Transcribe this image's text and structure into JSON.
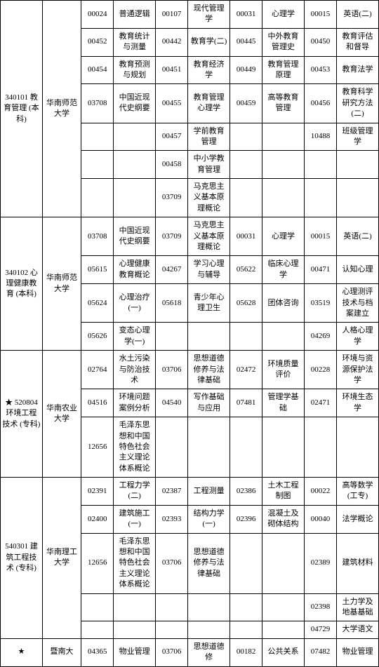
{
  "rows": [
    [
      {
        "v": "340101 教育管理 (本科)",
        "rs": 7
      },
      {
        "v": "华南师范大学",
        "rs": 7
      },
      {
        "v": "00024"
      },
      {
        "v": "普通逻辑"
      },
      {
        "v": "00107"
      },
      {
        "v": "现代管理学"
      },
      {
        "v": "00031"
      },
      {
        "v": "心理学"
      },
      {
        "v": "00015"
      },
      {
        "v": "英语(二)"
      }
    ],
    [
      {
        "v": "00452"
      },
      {
        "v": "教育统计与测量"
      },
      {
        "v": "00442"
      },
      {
        "v": "教育学(二)"
      },
      {
        "v": "00445"
      },
      {
        "v": "中外教育管理史"
      },
      {
        "v": "00450"
      },
      {
        "v": "教育评估和督导"
      }
    ],
    [
      {
        "v": "00454"
      },
      {
        "v": "教育预测与规划"
      },
      {
        "v": "00451"
      },
      {
        "v": "教育经济学"
      },
      {
        "v": "00449"
      },
      {
        "v": "教育管理原理"
      },
      {
        "v": "00453"
      },
      {
        "v": "教育法学"
      }
    ],
    [
      {
        "v": "03708"
      },
      {
        "v": "中国近现代史纲要"
      },
      {
        "v": "00455"
      },
      {
        "v": "教育管理心理学"
      },
      {
        "v": "00459"
      },
      {
        "v": "高等教育管理"
      },
      {
        "v": "00456"
      },
      {
        "v": "教育科学研究方法(二)"
      }
    ],
    [
      {
        "v": ""
      },
      {
        "v": ""
      },
      {
        "v": "00457"
      },
      {
        "v": "学前教育管理"
      },
      {
        "v": ""
      },
      {
        "v": ""
      },
      {
        "v": "10488"
      },
      {
        "v": "班级管理学"
      }
    ],
    [
      {
        "v": ""
      },
      {
        "v": ""
      },
      {
        "v": "00458"
      },
      {
        "v": "中小学教育管理"
      },
      {
        "v": ""
      },
      {
        "v": ""
      },
      {
        "v": ""
      },
      {
        "v": ""
      }
    ],
    [
      {
        "v": ""
      },
      {
        "v": ""
      },
      {
        "v": "03709"
      },
      {
        "v": "马克思主义基本原理概论"
      },
      {
        "v": ""
      },
      {
        "v": ""
      },
      {
        "v": ""
      },
      {
        "v": ""
      }
    ],
    [
      {
        "v": "340102 心理健康教育 (本科)",
        "rs": 4
      },
      {
        "v": "华南师范大学",
        "rs": 4
      },
      {
        "v": "03708"
      },
      {
        "v": "中国近现代史纲要"
      },
      {
        "v": "03709"
      },
      {
        "v": "马克思主义基本原理概论"
      },
      {
        "v": "00031"
      },
      {
        "v": "心理学"
      },
      {
        "v": "00015"
      },
      {
        "v": "英语(二)"
      }
    ],
    [
      {
        "v": "05615"
      },
      {
        "v": "心理健康教育概论"
      },
      {
        "v": "04267"
      },
      {
        "v": "学习心理与辅导"
      },
      {
        "v": "05622"
      },
      {
        "v": "临床心理学"
      },
      {
        "v": "00471"
      },
      {
        "v": "认知心理"
      }
    ],
    [
      {
        "v": "05624"
      },
      {
        "v": "心理治疗(一)"
      },
      {
        "v": "05618"
      },
      {
        "v": "青少年心理卫生"
      },
      {
        "v": "05628"
      },
      {
        "v": "团体咨询"
      },
      {
        "v": "03519"
      },
      {
        "v": "心理测评技术与档案建立"
      }
    ],
    [
      {
        "v": "05626"
      },
      {
        "v": "变态心理学(一)"
      },
      {
        "v": ""
      },
      {
        "v": ""
      },
      {
        "v": ""
      },
      {
        "v": ""
      },
      {
        "v": "04269"
      },
      {
        "v": "人格心理学"
      }
    ],
    [
      {
        "v": "★ 520804 环境工程技术 (专科)",
        "rs": 3
      },
      {
        "v": "华南农业大学",
        "rs": 3
      },
      {
        "v": "02764"
      },
      {
        "v": "水土污染与防治技术"
      },
      {
        "v": "03706"
      },
      {
        "v": "思想道德修养与法律基础"
      },
      {
        "v": "02472"
      },
      {
        "v": "环境质量评价"
      },
      {
        "v": "00228"
      },
      {
        "v": "环境与资源保护法学"
      }
    ],
    [
      {
        "v": "04516"
      },
      {
        "v": "环境问题案例分析"
      },
      {
        "v": "04540"
      },
      {
        "v": "写作基础与应用"
      },
      {
        "v": "07481"
      },
      {
        "v": "管理学基础"
      },
      {
        "v": "02471"
      },
      {
        "v": "环境生态学"
      }
    ],
    [
      {
        "v": "12656"
      },
      {
        "v": "毛泽东思想和中国特色社会主义理论体系概论"
      },
      {
        "v": ""
      },
      {
        "v": ""
      },
      {
        "v": ""
      },
      {
        "v": ""
      },
      {
        "v": ""
      },
      {
        "v": ""
      }
    ],
    [
      {
        "v": "540301 建筑工程技术 (专科)",
        "rs": 5
      },
      {
        "v": "华南理工大学",
        "rs": 5
      },
      {
        "v": "02391"
      },
      {
        "v": "工程力学(二)"
      },
      {
        "v": "02387"
      },
      {
        "v": "工程测量"
      },
      {
        "v": "02386"
      },
      {
        "v": "土木工程制图"
      },
      {
        "v": "00022"
      },
      {
        "v": "高等数学(工专)"
      }
    ],
    [
      {
        "v": "02400"
      },
      {
        "v": "建筑施工(一)"
      },
      {
        "v": "02393"
      },
      {
        "v": "结构力学(一)"
      },
      {
        "v": "02396"
      },
      {
        "v": "混凝土及砌体结构"
      },
      {
        "v": "00040"
      },
      {
        "v": "法学概论"
      }
    ],
    [
      {
        "v": "12656"
      },
      {
        "v": "毛泽东思想和中国特色社会主义理论体系概论"
      },
      {
        "v": "03706"
      },
      {
        "v": "思想道德修养与法律基础"
      },
      {
        "v": ""
      },
      {
        "v": ""
      },
      {
        "v": "02389"
      },
      {
        "v": "建筑材料"
      }
    ],
    [
      {
        "v": ""
      },
      {
        "v": ""
      },
      {
        "v": ""
      },
      {
        "v": ""
      },
      {
        "v": ""
      },
      {
        "v": ""
      },
      {
        "v": "02398"
      },
      {
        "v": "土力学及地基基础"
      }
    ],
    [
      {
        "v": ""
      },
      {
        "v": ""
      },
      {
        "v": ""
      },
      {
        "v": ""
      },
      {
        "v": ""
      },
      {
        "v": ""
      },
      {
        "v": "04729"
      },
      {
        "v": "大学语文"
      }
    ],
    [
      {
        "v": "★"
      },
      {
        "v": "暨南大"
      },
      {
        "v": "04365"
      },
      {
        "v": "物业管理"
      },
      {
        "v": "03706"
      },
      {
        "v": "思想道德修"
      },
      {
        "v": "00182"
      },
      {
        "v": "公共关系"
      },
      {
        "v": "07482"
      },
      {
        "v": "物业管理"
      }
    ]
  ]
}
